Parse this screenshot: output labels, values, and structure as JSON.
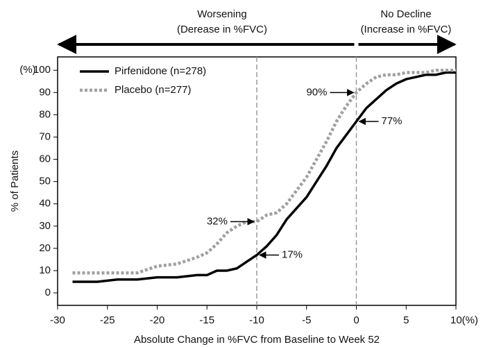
{
  "chart_data": {
    "type": "line",
    "header": {
      "left": [
        "Worsening",
        "(Derease in %FVC)"
      ],
      "right": [
        "No Decline",
        "(Increase in %FVC)"
      ]
    },
    "x_label": "Absolute Change in %FVC from Baseline to Week 52",
    "y_label": "% of Patients",
    "y_unit": "(%)",
    "xlim": [
      -30,
      10
    ],
    "ylim": [
      -5.6,
      106
    ],
    "xticks": [
      -30,
      -25,
      -20,
      -15,
      -10,
      -5,
      0,
      5,
      {
        "value": 10,
        "label": "10(%)"
      }
    ],
    "yticks": [
      0,
      10,
      20,
      30,
      40,
      50,
      60,
      70,
      80,
      90,
      100
    ],
    "grid": false,
    "legend": "upper left",
    "vlines": [
      -10,
      0
    ],
    "x": [
      -28.5,
      -26,
      -24,
      -22,
      -20,
      -18,
      -16,
      -15,
      -14,
      -13,
      -12,
      -11,
      -10,
      -9,
      -8,
      -7,
      -6,
      -5,
      -4,
      -3,
      -2,
      -1,
      0,
      1,
      2,
      3,
      4,
      5,
      6,
      7,
      8,
      9,
      10
    ],
    "series": [
      {
        "name": "Pirfenidone (n=278)",
        "color": "#000000",
        "style": "solid",
        "values": [
          5,
          5,
          6,
          6,
          7,
          7,
          8,
          8,
          10,
          10,
          11,
          14,
          17,
          21,
          26,
          33,
          38,
          43,
          50,
          57,
          65,
          71,
          77,
          83,
          87,
          91,
          94,
          96,
          97,
          98,
          98,
          99,
          99
        ]
      },
      {
        "name": "Placebo (n=277)",
        "color": "#a0a0a0",
        "style": "dotted",
        "values": [
          9,
          9,
          9,
          9,
          12,
          13,
          16,
          18,
          22,
          27,
          30,
          32,
          32,
          35,
          36,
          40,
          46,
          52,
          60,
          68,
          77,
          84,
          90,
          94,
          97,
          98,
          98,
          99,
          99,
          99,
          100,
          100,
          100
        ]
      }
    ],
    "annotations": [
      {
        "label": "90%",
        "x": 0,
        "y": 90
      },
      {
        "label": "77%",
        "x": 0,
        "y": 77
      },
      {
        "label": "32%",
        "x": -10,
        "y": 32
      },
      {
        "label": "17%",
        "x": -10,
        "y": 17
      }
    ]
  }
}
